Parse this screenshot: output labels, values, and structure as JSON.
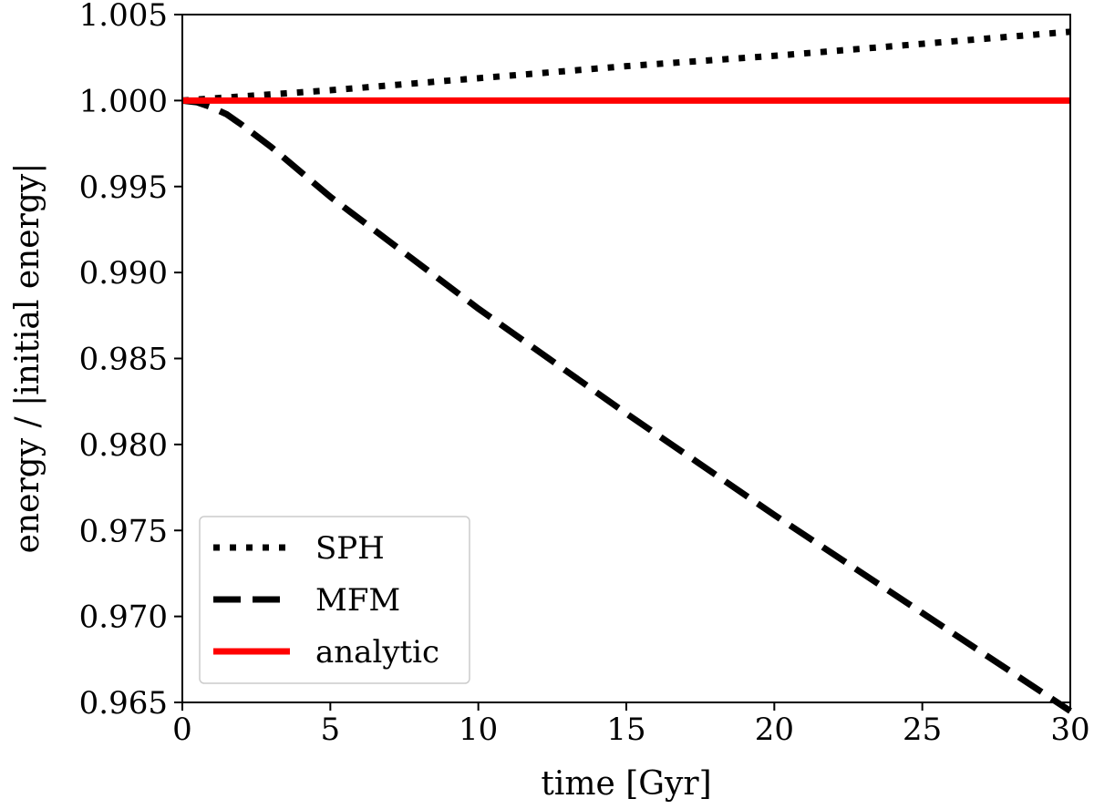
{
  "chart_data": {
    "type": "line",
    "title": "",
    "xlabel": "time [Gyr]",
    "ylabel": "energy / |initial energy|",
    "xlim": [
      0,
      30
    ],
    "ylim": [
      0.965,
      1.005
    ],
    "xticks": [
      0,
      5,
      10,
      15,
      20,
      25,
      30
    ],
    "xtick_labels": [
      "0",
      "5",
      "10",
      "15",
      "20",
      "25",
      "30"
    ],
    "yticks": [
      0.965,
      0.97,
      0.975,
      0.98,
      0.985,
      0.99,
      0.995,
      1.0,
      1.005
    ],
    "ytick_labels": [
      "0.965",
      "0.970",
      "0.975",
      "0.980",
      "0.985",
      "0.990",
      "0.995",
      "1.000",
      "1.005"
    ],
    "grid": false,
    "legend_position": "bottom-left",
    "series": [
      {
        "name": "SPH",
        "style": "dotted",
        "color": "#000000",
        "x": [
          0,
          5,
          10,
          15,
          20,
          25,
          30
        ],
        "y": [
          1.0,
          1.0006,
          1.0013,
          1.002,
          1.0026,
          1.0033,
          1.004
        ]
      },
      {
        "name": "MFM",
        "style": "dashed",
        "color": "#000000",
        "x": [
          0,
          0.5,
          1,
          1.5,
          2,
          3,
          5,
          10,
          15,
          20,
          25,
          30
        ],
        "y": [
          1.0,
          0.9999,
          0.9996,
          0.9992,
          0.9986,
          0.9973,
          0.9944,
          0.9879,
          0.9818,
          0.9759,
          0.9702,
          0.9645
        ]
      },
      {
        "name": "analytic",
        "style": "solid",
        "color": "#ff0000",
        "x": [
          0,
          30
        ],
        "y": [
          1.0,
          1.0
        ]
      }
    ]
  }
}
